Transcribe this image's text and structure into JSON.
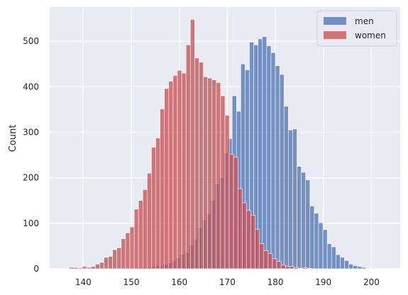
{
  "chart_data": {
    "type": "histogram",
    "title": "",
    "xlabel": "",
    "ylabel": "Count",
    "xlim": [
      133,
      206
    ],
    "ylim": [
      0,
      575
    ],
    "xticks": [
      140,
      150,
      160,
      170,
      180,
      190,
      200
    ],
    "yticks": [
      0,
      100,
      200,
      300,
      400,
      500
    ],
    "grid": true,
    "legend_position": "top-right",
    "bin_width": 0.9,
    "series": [
      {
        "name": "men",
        "color": "#4c72b0",
        "bins": [
          [
            147.6,
            1
          ],
          [
            148.5,
            1
          ],
          [
            149.4,
            2
          ],
          [
            150.3,
            2
          ],
          [
            151.2,
            2
          ],
          [
            152.1,
            3
          ],
          [
            153.0,
            3
          ],
          [
            153.9,
            5
          ],
          [
            154.8,
            7
          ],
          [
            155.7,
            5
          ],
          [
            156.6,
            10
          ],
          [
            157.5,
            13
          ],
          [
            158.4,
            18
          ],
          [
            159.3,
            24
          ],
          [
            160.2,
            32
          ],
          [
            161.1,
            36
          ],
          [
            162.0,
            52
          ],
          [
            162.9,
            65
          ],
          [
            163.8,
            90
          ],
          [
            164.7,
            107
          ],
          [
            165.6,
            120
          ],
          [
            166.5,
            150
          ],
          [
            167.4,
            186
          ],
          [
            168.3,
            200
          ],
          [
            169.2,
            254
          ],
          [
            170.1,
            286
          ],
          [
            171.0,
            380
          ],
          [
            171.9,
            346
          ],
          [
            172.8,
            450
          ],
          [
            173.7,
            437
          ],
          [
            174.6,
            498
          ],
          [
            175.5,
            492
          ],
          [
            176.4,
            505
          ],
          [
            177.3,
            510
          ],
          [
            178.2,
            490
          ],
          [
            179.1,
            475
          ],
          [
            180.0,
            446
          ],
          [
            180.9,
            427
          ],
          [
            181.8,
            357
          ],
          [
            182.7,
            305
          ],
          [
            183.6,
            307
          ],
          [
            184.5,
            225
          ],
          [
            185.4,
            212
          ],
          [
            186.3,
            195
          ],
          [
            187.2,
            138
          ],
          [
            188.1,
            122
          ],
          [
            189.0,
            101
          ],
          [
            189.9,
            86
          ],
          [
            190.8,
            55
          ],
          [
            191.7,
            48
          ],
          [
            192.6,
            31
          ],
          [
            193.5,
            25
          ],
          [
            194.4,
            18
          ],
          [
            195.3,
            10
          ],
          [
            196.2,
            7
          ],
          [
            197.1,
            5
          ],
          [
            198.0,
            3
          ],
          [
            198.9,
            1
          ]
        ]
      },
      {
        "name": "women",
        "color": "#c44e52",
        "bins": [
          [
            137.1,
            3
          ],
          [
            138.0,
            3
          ],
          [
            138.9,
            2
          ],
          [
            139.8,
            5
          ],
          [
            140.7,
            3
          ],
          [
            141.6,
            5
          ],
          [
            142.5,
            10
          ],
          [
            143.4,
            14
          ],
          [
            144.3,
            25
          ],
          [
            145.2,
            27
          ],
          [
            146.1,
            42
          ],
          [
            147.0,
            46
          ],
          [
            147.9,
            66
          ],
          [
            148.8,
            79
          ],
          [
            149.7,
            92
          ],
          [
            150.6,
            131
          ],
          [
            151.5,
            150
          ],
          [
            152.4,
            174
          ],
          [
            153.3,
            210
          ],
          [
            154.2,
            267
          ],
          [
            155.1,
            287
          ],
          [
            156.0,
            351
          ],
          [
            156.9,
            396
          ],
          [
            157.8,
            412
          ],
          [
            158.7,
            425
          ],
          [
            159.6,
            436
          ],
          [
            160.5,
            430
          ],
          [
            161.4,
            492
          ],
          [
            162.3,
            548
          ],
          [
            163.2,
            463
          ],
          [
            164.1,
            454
          ],
          [
            165.0,
            422
          ],
          [
            165.9,
            419
          ],
          [
            166.8,
            415
          ],
          [
            167.7,
            409
          ],
          [
            168.6,
            380
          ],
          [
            169.5,
            337
          ],
          [
            170.4,
            252
          ],
          [
            171.3,
            245
          ],
          [
            172.2,
            176
          ],
          [
            173.1,
            145
          ],
          [
            174.0,
            128
          ],
          [
            174.9,
            118
          ],
          [
            175.8,
            87
          ],
          [
            176.7,
            55
          ],
          [
            177.6,
            40
          ],
          [
            178.5,
            33
          ],
          [
            179.4,
            22
          ],
          [
            180.3,
            16
          ],
          [
            181.2,
            8
          ],
          [
            182.1,
            5
          ],
          [
            183.0,
            5
          ],
          [
            183.9,
            3
          ],
          [
            184.8,
            1
          ],
          [
            185.7,
            2
          ],
          [
            186.6,
            1
          ]
        ]
      }
    ]
  }
}
